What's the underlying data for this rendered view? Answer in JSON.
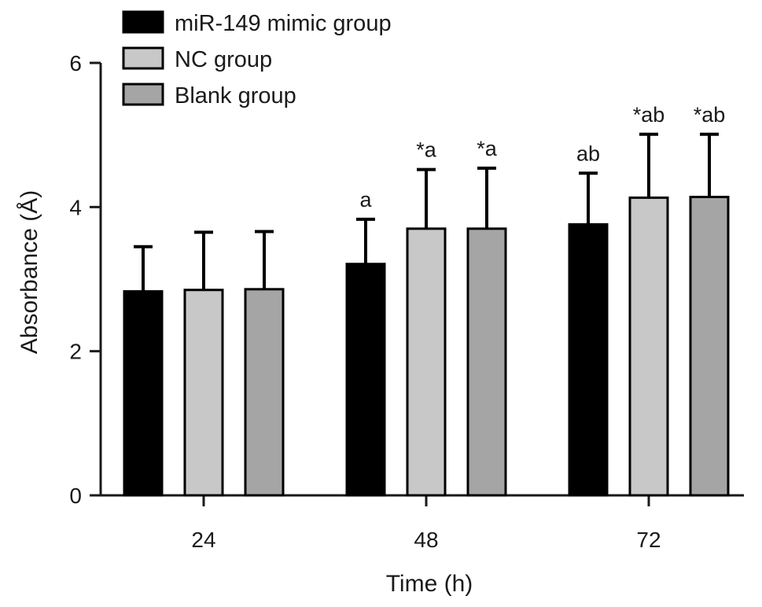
{
  "chart_data": {
    "type": "bar",
    "xlabel": "Time (h)",
    "ylabel": "Absorbance (Å)",
    "categories": [
      "24",
      "48",
      "72"
    ],
    "ylim": [
      0,
      6
    ],
    "yticks": [
      "0",
      "2",
      "4",
      "6"
    ],
    "legend_position": "top-left",
    "grid": false,
    "series": [
      {
        "name": "miR-149 mimic group",
        "color": "#000000",
        "values": [
          2.83,
          3.21,
          3.76
        ],
        "errors": [
          0.62,
          0.62,
          0.71
        ],
        "labels": [
          "",
          "a",
          "ab"
        ]
      },
      {
        "name": "NC group",
        "color": "#c8c8c8",
        "values": [
          2.85,
          3.7,
          4.13
        ],
        "errors": [
          0.8,
          0.82,
          0.88
        ],
        "labels": [
          "",
          "*a",
          "*ab"
        ]
      },
      {
        "name": "Blank group",
        "color": "#a5a5a5",
        "values": [
          2.86,
          3.7,
          4.14
        ],
        "errors": [
          0.8,
          0.84,
          0.87
        ],
        "labels": [
          "",
          "*a",
          "*ab"
        ]
      }
    ]
  }
}
